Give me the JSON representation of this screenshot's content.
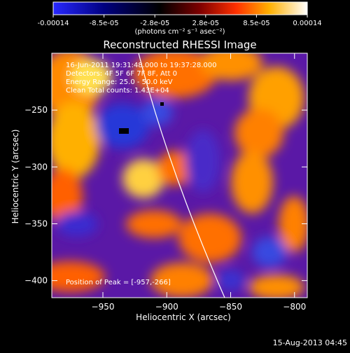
{
  "colorbar": {
    "tick_labels": [
      "-0.00014",
      "-8.5e-05",
      "-2.8e-05",
      "2.8e-05",
      "8.5e-05",
      "0.00014"
    ],
    "units_label": "(photons cm⁻² s⁻¹ asec⁻²)",
    "colors": [
      "#2828ff",
      "#000080",
      "#000000",
      "#800000",
      "#ff3000",
      "#ffb000",
      "#ffffff"
    ]
  },
  "chart_data": {
    "type": "heatmap",
    "title": "Reconstructed RHESSI Image",
    "xlabel": "Heliocentric X (arcsec)",
    "ylabel": "Heliocentric Y (arcsec)",
    "xlim": [
      -990,
      -790
    ],
    "ylim": [
      -415,
      -200
    ],
    "xticks": [
      -950,
      -900,
      -850,
      -800
    ],
    "yticks": [
      -250,
      -300,
      -350,
      -400
    ],
    "annotations": [
      "16-Jun-2011 19:31:48.000 to 19:37:28.000",
      "Detectors: 4F 5F 6F 7F 8F, Att 0",
      "Energy Range: 25.0 - 50.0 keV",
      "Clean    Total counts: 1.43E+04"
    ],
    "peak_label": "Position of Peak = [-957,-266]",
    "peak_position": [
      -957,
      -266
    ]
  },
  "footer": {
    "date": "15-Aug-2013 04:45"
  }
}
